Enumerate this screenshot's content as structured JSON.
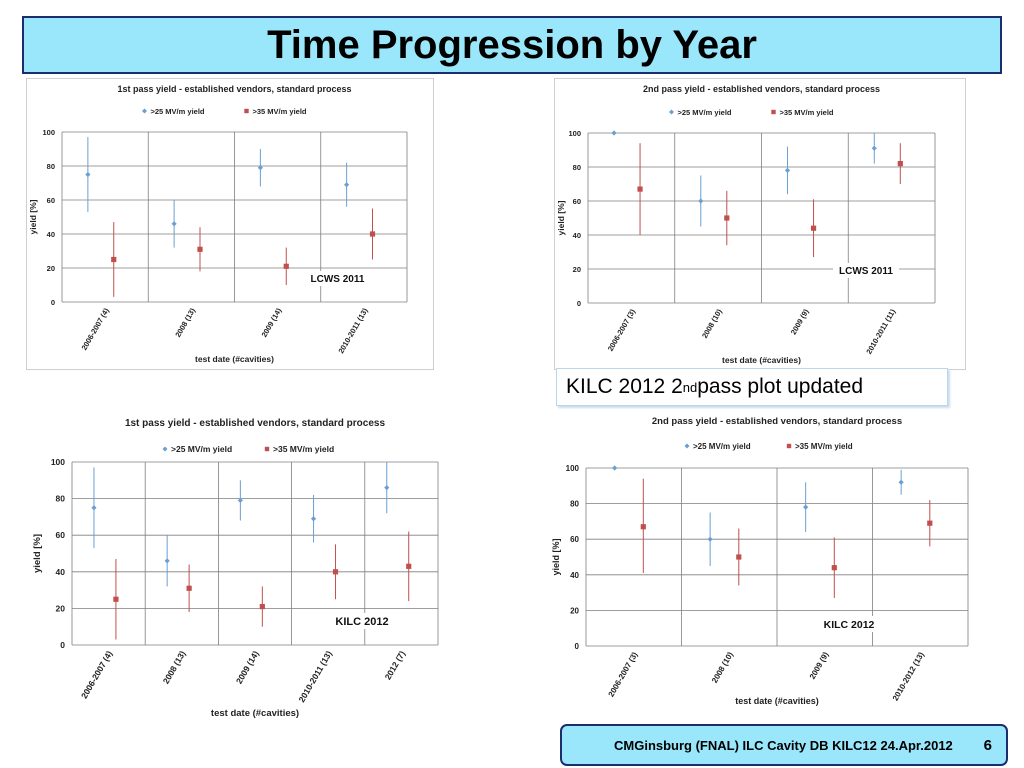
{
  "page": {
    "title": "Time Progression by Year",
    "note_prefix": "KILC 2012 2",
    "note_sup": "nd",
    "note_suffix": " pass plot updated",
    "footer": "CMGinsburg (FNAL) ILC Cavity DB KILC12 24.Apr.2012",
    "page_number": "6"
  },
  "colors": {
    "s25": "#6a9fd2",
    "s35": "#c0504d",
    "title_bg": "#9ae6fa",
    "border": "#1c2d6e"
  },
  "chart_data": [
    {
      "type": "scatter",
      "title": "1st pass yield - established vendors, standard process",
      "xlabel": "test date (#cavities)",
      "ylabel": "yield [%]",
      "ylim": [
        0,
        100
      ],
      "yticks": [
        0,
        20,
        40,
        60,
        80,
        100
      ],
      "annotation": "LCWS 2011",
      "categories": [
        "2006-2007 (4)",
        "2008 (13)",
        "2009 (14)",
        "2010-2011 (13)"
      ],
      "series": [
        {
          "name": ">25 MV/m yield",
          "values": [
            75,
            46,
            79,
            69
          ],
          "err_low": [
            53,
            32,
            68,
            56
          ],
          "err_high": [
            97,
            60,
            90,
            82
          ]
        },
        {
          "name": ">35 MV/m yield",
          "values": [
            25,
            31,
            21,
            40
          ],
          "err_low": [
            3,
            18,
            10,
            25
          ],
          "err_high": [
            47,
            44,
            32,
            55
          ]
        }
      ],
      "grid": true,
      "legend_position": "top"
    },
    {
      "type": "scatter",
      "title": "2nd pass yield - established vendors, standard process",
      "xlabel": "test date (#cavities)",
      "ylabel": "yield [%]",
      "ylim": [
        0,
        100
      ],
      "yticks": [
        0,
        20,
        40,
        60,
        80,
        100
      ],
      "annotation": "LCWS 2011",
      "categories": [
        "2006-2007 (3)",
        "2008 (10)",
        "2009 (9)",
        "2010-2011 (11)"
      ],
      "series": [
        {
          "name": ">25 MV/m yield",
          "values": [
            100,
            60,
            78,
            91
          ],
          "err_low": [
            100,
            45,
            64,
            82
          ],
          "err_high": [
            100,
            75,
            92,
            100
          ]
        },
        {
          "name": ">35 MV/m yield",
          "values": [
            67,
            50,
            44,
            82
          ],
          "err_low": [
            40,
            34,
            27,
            70
          ],
          "err_high": [
            94,
            66,
            61,
            94
          ]
        }
      ],
      "grid": true,
      "legend_position": "top"
    },
    {
      "type": "scatter",
      "title": "1st pass yield - established vendors, standard process",
      "xlabel": "test date (#cavities)",
      "ylabel": "yield [%]",
      "ylim": [
        0,
        100
      ],
      "yticks": [
        0,
        20,
        40,
        60,
        80,
        100
      ],
      "annotation": "KILC 2012",
      "categories": [
        "2006-2007 (4)",
        "2008 (13)",
        "2009 (14)",
        "2010-2011 (13)",
        "2012 (7)"
      ],
      "series": [
        {
          "name": ">25 MV/m yield",
          "values": [
            75,
            46,
            79,
            69,
            86
          ],
          "err_low": [
            53,
            32,
            68,
            56,
            72
          ],
          "err_high": [
            97,
            60,
            90,
            82,
            100
          ]
        },
        {
          "name": ">35 MV/m yield",
          "values": [
            25,
            31,
            21,
            40,
            43
          ],
          "err_low": [
            3,
            18,
            10,
            25,
            24
          ],
          "err_high": [
            47,
            44,
            32,
            55,
            62
          ]
        }
      ],
      "grid": true,
      "legend_position": "top"
    },
    {
      "type": "scatter",
      "title": "2nd pass yield - established vendors, standard process",
      "xlabel": "test date (#cavities)",
      "ylabel": "yield [%]",
      "ylim": [
        0,
        100
      ],
      "yticks": [
        0,
        20,
        40,
        60,
        80,
        100
      ],
      "annotation": "KILC 2012",
      "categories": [
        "2006-2007 (3)",
        "2008 (10)",
        "2009 (9)",
        "2010-2012 (13)"
      ],
      "series": [
        {
          "name": ">25 MV/m yield",
          "values": [
            100,
            60,
            78,
            92
          ],
          "err_low": [
            100,
            45,
            64,
            85
          ],
          "err_high": [
            100,
            75,
            92,
            99
          ]
        },
        {
          "name": ">35 MV/m yield",
          "values": [
            67,
            50,
            44,
            69
          ],
          "err_low": [
            41,
            34,
            27,
            56
          ],
          "err_high": [
            94,
            66,
            61,
            82
          ]
        }
      ],
      "grid": true,
      "legend_position": "top"
    }
  ]
}
